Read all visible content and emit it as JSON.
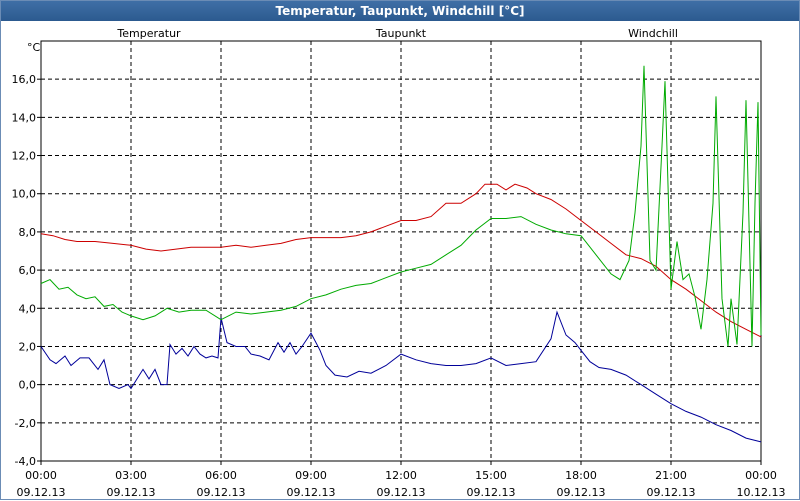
{
  "window": {
    "title": "Temperatur, Taupunkt, Windchill [°C]"
  },
  "chart_data": {
    "type": "line",
    "title": "Temperatur, Taupunkt, Windchill [°C]",
    "ylabel": "°C",
    "ylim": [
      -4,
      18
    ],
    "xlim": [
      0,
      24
    ],
    "grid": true,
    "y_ticks": [
      {
        "v": 16,
        "label": "16,0"
      },
      {
        "v": 14,
        "label": "14,0"
      },
      {
        "v": 12,
        "label": "12,0"
      },
      {
        "v": 10,
        "label": "10,0"
      },
      {
        "v": 8,
        "label": "8,0"
      },
      {
        "v": 6,
        "label": "6,0"
      },
      {
        "v": 4,
        "label": "4,0"
      },
      {
        "v": 2,
        "label": "2,0"
      },
      {
        "v": 0,
        "label": "0,0"
      },
      {
        "v": -2,
        "label": "-2,0"
      },
      {
        "v": -4,
        "label": "-4,0"
      }
    ],
    "x_ticks": [
      {
        "h": 0,
        "time": "00:00",
        "date": "09.12.13"
      },
      {
        "h": 3,
        "time": "03:00",
        "date": "09.12.13"
      },
      {
        "h": 6,
        "time": "06:00",
        "date": "09.12.13"
      },
      {
        "h": 9,
        "time": "09:00",
        "date": "09.12.13"
      },
      {
        "h": 12,
        "time": "12:00",
        "date": "09.12.13"
      },
      {
        "h": 15,
        "time": "15:00",
        "date": "09.12.13"
      },
      {
        "h": 18,
        "time": "18:00",
        "date": "09.12.13"
      },
      {
        "h": 21,
        "time": "21:00",
        "date": "09.12.13"
      },
      {
        "h": 24,
        "time": "00:00",
        "date": "10.12.13"
      }
    ],
    "series": [
      {
        "name": "Temperatur",
        "color": "#cc0000",
        "legend_pos": "left",
        "points": [
          [
            0,
            7.9
          ],
          [
            0.4,
            7.8
          ],
          [
            0.8,
            7.6
          ],
          [
            1.2,
            7.5
          ],
          [
            1.8,
            7.5
          ],
          [
            2.4,
            7.4
          ],
          [
            3,
            7.3
          ],
          [
            3.5,
            7.1
          ],
          [
            4,
            7.0
          ],
          [
            4.5,
            7.1
          ],
          [
            5,
            7.2
          ],
          [
            5.5,
            7.2
          ],
          [
            6,
            7.2
          ],
          [
            6.5,
            7.3
          ],
          [
            7,
            7.2
          ],
          [
            7.5,
            7.3
          ],
          [
            8,
            7.4
          ],
          [
            8.5,
            7.6
          ],
          [
            9,
            7.7
          ],
          [
            9.5,
            7.7
          ],
          [
            10,
            7.7
          ],
          [
            10.5,
            7.8
          ],
          [
            11,
            8.0
          ],
          [
            11.5,
            8.3
          ],
          [
            12,
            8.6
          ],
          [
            12.5,
            8.6
          ],
          [
            13,
            8.8
          ],
          [
            13.5,
            9.5
          ],
          [
            14,
            9.5
          ],
          [
            14.5,
            10.0
          ],
          [
            14.8,
            10.5
          ],
          [
            15.2,
            10.5
          ],
          [
            15.5,
            10.2
          ],
          [
            15.8,
            10.5
          ],
          [
            16.2,
            10.3
          ],
          [
            16.5,
            10.0
          ],
          [
            17,
            9.7
          ],
          [
            17.5,
            9.2
          ],
          [
            18,
            8.6
          ],
          [
            18.5,
            8.0
          ],
          [
            19,
            7.4
          ],
          [
            19.5,
            6.8
          ],
          [
            20,
            6.6
          ],
          [
            20.5,
            6.2
          ],
          [
            21,
            5.5
          ],
          [
            21.5,
            5.0
          ],
          [
            22,
            4.4
          ],
          [
            22.5,
            3.8
          ],
          [
            23,
            3.3
          ],
          [
            23.5,
            2.9
          ],
          [
            24,
            2.5
          ]
        ]
      },
      {
        "name": "Taupunkt",
        "color": "#000099",
        "legend_pos": "center",
        "points": [
          [
            0,
            2.0
          ],
          [
            0.3,
            1.3
          ],
          [
            0.5,
            1.1
          ],
          [
            0.8,
            1.5
          ],
          [
            1,
            1.0
          ],
          [
            1.3,
            1.4
          ],
          [
            1.6,
            1.4
          ],
          [
            1.9,
            0.8
          ],
          [
            2.1,
            1.3
          ],
          [
            2.3,
            0.0
          ],
          [
            2.6,
            -0.2
          ],
          [
            2.9,
            0.0
          ],
          [
            3,
            -0.2
          ],
          [
            3.2,
            0.3
          ],
          [
            3.4,
            0.8
          ],
          [
            3.6,
            0.3
          ],
          [
            3.8,
            0.8
          ],
          [
            4,
            0.0
          ],
          [
            4.2,
            0.0
          ],
          [
            4.3,
            2.1
          ],
          [
            4.5,
            1.6
          ],
          [
            4.7,
            1.9
          ],
          [
            4.9,
            1.5
          ],
          [
            5.1,
            2.0
          ],
          [
            5.3,
            1.6
          ],
          [
            5.5,
            1.4
          ],
          [
            5.7,
            1.5
          ],
          [
            5.9,
            1.4
          ],
          [
            6,
            3.5
          ],
          [
            6.2,
            2.2
          ],
          [
            6.5,
            2.0
          ],
          [
            6.8,
            2.0
          ],
          [
            7,
            1.6
          ],
          [
            7.3,
            1.5
          ],
          [
            7.6,
            1.3
          ],
          [
            7.9,
            2.2
          ],
          [
            8.1,
            1.7
          ],
          [
            8.3,
            2.2
          ],
          [
            8.5,
            1.6
          ],
          [
            8.7,
            2.0
          ],
          [
            9,
            2.7
          ],
          [
            9.3,
            1.8
          ],
          [
            9.5,
            1.0
          ],
          [
            9.8,
            0.5
          ],
          [
            10.2,
            0.4
          ],
          [
            10.6,
            0.7
          ],
          [
            11,
            0.6
          ],
          [
            11.5,
            1.0
          ],
          [
            12,
            1.6
          ],
          [
            12.5,
            1.3
          ],
          [
            13,
            1.1
          ],
          [
            13.5,
            1.0
          ],
          [
            14,
            1.0
          ],
          [
            14.5,
            1.1
          ],
          [
            15,
            1.4
          ],
          [
            15.5,
            1.0
          ],
          [
            16,
            1.1
          ],
          [
            16.5,
            1.2
          ],
          [
            17,
            2.4
          ],
          [
            17.2,
            3.8
          ],
          [
            17.5,
            2.6
          ],
          [
            17.8,
            2.2
          ],
          [
            18,
            1.8
          ],
          [
            18.3,
            1.2
          ],
          [
            18.6,
            0.9
          ],
          [
            19,
            0.8
          ],
          [
            19.5,
            0.5
          ],
          [
            20,
            0.0
          ],
          [
            20.5,
            -0.5
          ],
          [
            21,
            -1.0
          ],
          [
            21.5,
            -1.4
          ],
          [
            22,
            -1.7
          ],
          [
            22.5,
            -2.1
          ],
          [
            23,
            -2.4
          ],
          [
            23.5,
            -2.8
          ],
          [
            24,
            -3.0
          ]
        ]
      },
      {
        "name": "Windchill",
        "color": "#00aa00",
        "legend_pos": "right",
        "points": [
          [
            0,
            5.3
          ],
          [
            0.3,
            5.5
          ],
          [
            0.6,
            5.0
          ],
          [
            0.9,
            5.1
          ],
          [
            1.2,
            4.7
          ],
          [
            1.5,
            4.5
          ],
          [
            1.8,
            4.6
          ],
          [
            2.1,
            4.1
          ],
          [
            2.4,
            4.2
          ],
          [
            2.7,
            3.8
          ],
          [
            3,
            3.6
          ],
          [
            3.4,
            3.4
          ],
          [
            3.8,
            3.6
          ],
          [
            4.2,
            4.0
          ],
          [
            4.6,
            3.8
          ],
          [
            5,
            3.9
          ],
          [
            5.5,
            3.9
          ],
          [
            6,
            3.4
          ],
          [
            6.5,
            3.8
          ],
          [
            7,
            3.7
          ],
          [
            7.5,
            3.8
          ],
          [
            8,
            3.9
          ],
          [
            8.5,
            4.1
          ],
          [
            9,
            4.5
          ],
          [
            9.5,
            4.7
          ],
          [
            10,
            5.0
          ],
          [
            10.5,
            5.2
          ],
          [
            11,
            5.3
          ],
          [
            11.5,
            5.6
          ],
          [
            12,
            5.9
          ],
          [
            12.5,
            6.1
          ],
          [
            13,
            6.3
          ],
          [
            13.5,
            6.8
          ],
          [
            14,
            7.3
          ],
          [
            14.5,
            8.1
          ],
          [
            15,
            8.7
          ],
          [
            15.5,
            8.7
          ],
          [
            16,
            8.8
          ],
          [
            16.5,
            8.4
          ],
          [
            17,
            8.1
          ],
          [
            17.5,
            7.9
          ],
          [
            18,
            7.8
          ],
          [
            18.5,
            6.8
          ],
          [
            19,
            5.8
          ],
          [
            19.3,
            5.5
          ],
          [
            19.6,
            6.5
          ],
          [
            19.8,
            9.0
          ],
          [
            20,
            12.5
          ],
          [
            20.1,
            16.7
          ],
          [
            20.3,
            6.5
          ],
          [
            20.5,
            6.0
          ],
          [
            20.7,
            12.5
          ],
          [
            20.8,
            15.9
          ],
          [
            21,
            5.0
          ],
          [
            21.2,
            7.5
          ],
          [
            21.4,
            5.5
          ],
          [
            21.6,
            5.8
          ],
          [
            21.8,
            4.6
          ],
          [
            22,
            2.9
          ],
          [
            22.2,
            5.5
          ],
          [
            22.4,
            9.5
          ],
          [
            22.5,
            15.1
          ],
          [
            22.7,
            4.5
          ],
          [
            22.9,
            2.0
          ],
          [
            23,
            4.5
          ],
          [
            23.2,
            2.1
          ],
          [
            23.4,
            9.0
          ],
          [
            23.5,
            14.9
          ],
          [
            23.7,
            2.0
          ],
          [
            23.8,
            9.5
          ],
          [
            23.9,
            14.8
          ],
          [
            24,
            2.6
          ]
        ]
      }
    ]
  }
}
